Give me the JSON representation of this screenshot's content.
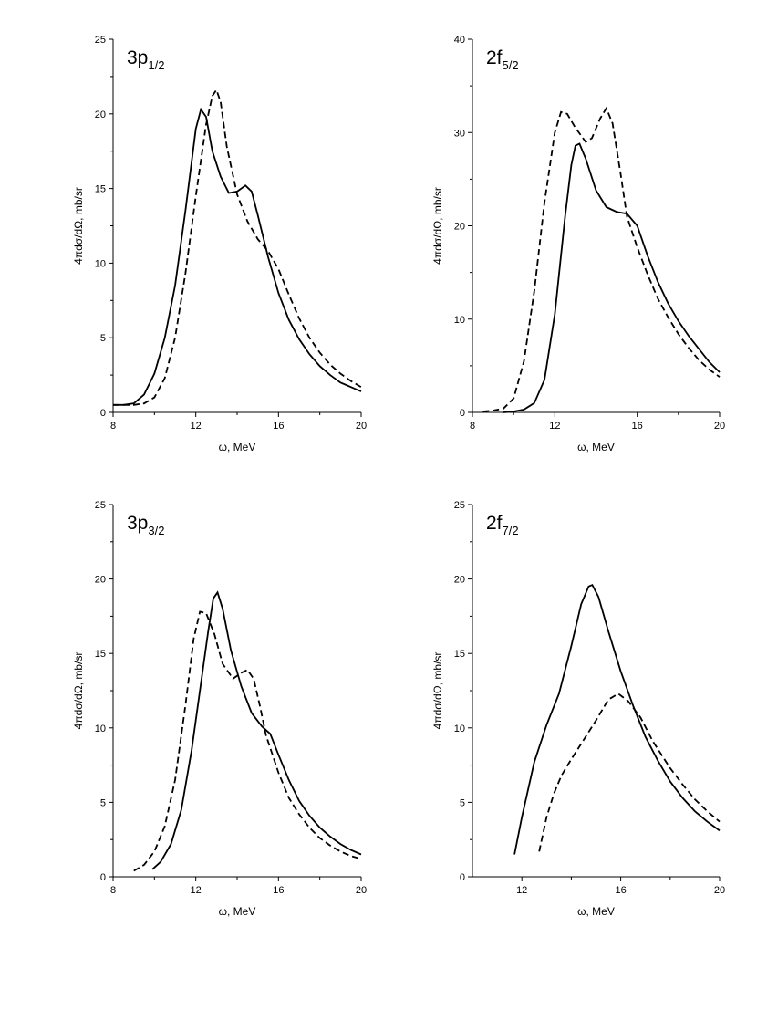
{
  "figure": {
    "colors": {
      "line": "#000000",
      "background": "#ffffff"
    }
  },
  "chart_data": [
    {
      "type": "line",
      "title": {
        "main": "3p",
        "sub": "1/2"
      },
      "xlabel": "ω, MeV",
      "ylabel": "4πdσ/dΩ, mb/sr",
      "xlim": [
        8,
        20
      ],
      "ylim": [
        0,
        25
      ],
      "xticks": [
        8,
        12,
        16,
        20
      ],
      "xtick_labels": [
        "8",
        "12",
        "16",
        "20"
      ],
      "yticks": [
        0,
        5,
        10,
        15,
        20,
        25
      ],
      "ytick_labels": [
        "0",
        "5",
        "10",
        "15",
        "20",
        "25"
      ],
      "series": [
        {
          "name": "solid",
          "style": "solid",
          "x": [
            8.0,
            8.5,
            9.0,
            9.5,
            10.0,
            10.5,
            11.0,
            11.5,
            12.0,
            12.25,
            12.5,
            12.8,
            13.2,
            13.6,
            14.0,
            14.4,
            14.7,
            15.0,
            15.5,
            16.0,
            16.5,
            17.0,
            17.5,
            18.0,
            18.5,
            19.0,
            19.5,
            20.0
          ],
          "y": [
            0.5,
            0.5,
            0.6,
            1.2,
            2.6,
            5.0,
            8.5,
            13.5,
            19.0,
            20.3,
            19.8,
            17.5,
            15.8,
            14.7,
            14.8,
            15.2,
            14.8,
            13.2,
            10.4,
            8.0,
            6.2,
            4.9,
            3.9,
            3.1,
            2.5,
            2.0,
            1.7,
            1.4
          ]
        },
        {
          "name": "dashed",
          "style": "dashed",
          "x": [
            8.0,
            8.5,
            9.0,
            9.5,
            10.0,
            10.5,
            11.0,
            11.5,
            12.0,
            12.5,
            12.8,
            13.0,
            13.2,
            13.5,
            14.0,
            14.5,
            15.0,
            15.5,
            16.0,
            16.5,
            17.0,
            17.5,
            18.0,
            18.5,
            19.0,
            19.5,
            20.0
          ],
          "y": [
            0.5,
            0.5,
            0.5,
            0.6,
            1.0,
            2.3,
            5.0,
            9.3,
            14.5,
            19.3,
            21.2,
            21.6,
            20.8,
            17.8,
            14.6,
            12.8,
            11.6,
            10.8,
            9.6,
            7.9,
            6.3,
            5.0,
            4.0,
            3.2,
            2.6,
            2.1,
            1.7
          ]
        }
      ]
    },
    {
      "type": "line",
      "title": {
        "main": "2f",
        "sub": "5/2"
      },
      "xlabel": "ω, MeV",
      "ylabel": "4πdσ/dΩ, mb/sr",
      "xlim": [
        8,
        20
      ],
      "ylim": [
        0,
        40
      ],
      "xticks": [
        8,
        12,
        16,
        20
      ],
      "xtick_labels": [
        "8",
        "12",
        "16",
        "20"
      ],
      "yticks": [
        0,
        10,
        20,
        30,
        40
      ],
      "ytick_labels": [
        "0",
        "10",
        "20",
        "30",
        "40"
      ],
      "series": [
        {
          "name": "solid",
          "style": "solid",
          "x": [
            9.5,
            10.0,
            10.5,
            11.0,
            11.5,
            12.0,
            12.5,
            12.8,
            13.0,
            13.2,
            13.5,
            14.0,
            14.5,
            15.0,
            15.5,
            16.0,
            16.5,
            17.0,
            17.5,
            18.0,
            18.5,
            19.0,
            19.5,
            20.0
          ],
          "y": [
            0.0,
            0.1,
            0.3,
            1.0,
            3.5,
            10.5,
            21.0,
            26.5,
            28.6,
            28.8,
            27.2,
            23.8,
            22.0,
            21.5,
            21.3,
            20.0,
            16.8,
            14.0,
            11.7,
            9.8,
            8.2,
            6.8,
            5.4,
            4.3
          ]
        },
        {
          "name": "dashed",
          "style": "dashed",
          "x": [
            8.5,
            9.0,
            9.5,
            10.0,
            10.5,
            11.0,
            11.5,
            12.0,
            12.3,
            12.6,
            13.0,
            13.5,
            13.8,
            14.2,
            14.5,
            14.8,
            15.2,
            15.5,
            16.0,
            16.5,
            17.0,
            17.5,
            18.0,
            18.5,
            19.0,
            19.5,
            20.0
          ],
          "y": [
            0.1,
            0.2,
            0.4,
            1.5,
            5.5,
            13.0,
            22.5,
            30.0,
            32.2,
            32.0,
            30.5,
            29.0,
            29.4,
            31.5,
            32.6,
            31.0,
            25.5,
            21.0,
            17.7,
            14.8,
            12.2,
            10.2,
            8.4,
            6.9,
            5.6,
            4.6,
            3.8
          ]
        }
      ]
    },
    {
      "type": "line",
      "title": {
        "main": "3p",
        "sub": "3/2"
      },
      "xlabel": "ω, MeV",
      "ylabel": "4πdσ/dΩ, mb/sr",
      "xlim": [
        8,
        20
      ],
      "ylim": [
        0,
        25
      ],
      "xticks": [
        8,
        12,
        16,
        20
      ],
      "xtick_labels": [
        "8",
        "12",
        "16",
        "20"
      ],
      "yticks": [
        0,
        5,
        10,
        15,
        20,
        25
      ],
      "ytick_labels": [
        "0",
        "5",
        "10",
        "15",
        "20",
        "25"
      ],
      "series": [
        {
          "name": "solid",
          "style": "solid",
          "x": [
            9.9,
            10.3,
            10.8,
            11.3,
            11.8,
            12.2,
            12.6,
            12.85,
            13.05,
            13.3,
            13.7,
            14.2,
            14.7,
            15.2,
            15.6,
            16.0,
            16.5,
            17.0,
            17.5,
            18.0,
            18.5,
            19.0,
            19.5,
            20.0
          ],
          "y": [
            0.5,
            1.0,
            2.2,
            4.5,
            8.5,
            12.5,
            16.5,
            18.7,
            19.1,
            18.0,
            15.2,
            12.8,
            11.0,
            10.1,
            9.6,
            8.2,
            6.5,
            5.1,
            4.1,
            3.3,
            2.7,
            2.2,
            1.8,
            1.5
          ]
        },
        {
          "name": "dashed",
          "style": "dashed",
          "x": [
            9.0,
            9.5,
            10.0,
            10.5,
            11.0,
            11.5,
            11.9,
            12.2,
            12.5,
            12.9,
            13.3,
            13.8,
            14.2,
            14.5,
            14.8,
            15.1,
            15.4,
            16.0,
            16.5,
            17.0,
            17.5,
            18.0,
            18.5,
            19.0,
            19.5,
            20.0
          ],
          "y": [
            0.4,
            0.8,
            1.7,
            3.4,
            6.5,
            11.5,
            16.0,
            17.8,
            17.7,
            16.3,
            14.3,
            13.3,
            13.7,
            13.9,
            13.3,
            11.5,
            9.5,
            7.0,
            5.3,
            4.2,
            3.3,
            2.6,
            2.1,
            1.7,
            1.4,
            1.2
          ]
        }
      ]
    },
    {
      "type": "line",
      "title": {
        "main": "2f",
        "sub": "7/2"
      },
      "xlabel": "ω, MeV",
      "ylabel": "4πdσ/dΩ, mb/sr",
      "xlim": [
        10,
        20
      ],
      "ylim": [
        0,
        25
      ],
      "xticks": [
        12,
        16,
        20
      ],
      "xtick_labels": [
        "12",
        "16",
        "20"
      ],
      "yticks": [
        0,
        5,
        10,
        15,
        20,
        25
      ],
      "ytick_labels": [
        "0",
        "5",
        "10",
        "15",
        "20",
        "25"
      ],
      "series": [
        {
          "name": "solid",
          "style": "solid",
          "x": [
            11.7,
            12.0,
            12.5,
            13.0,
            13.5,
            14.0,
            14.4,
            14.7,
            14.85,
            15.1,
            15.5,
            16.0,
            16.5,
            17.0,
            17.5,
            18.0,
            18.5,
            19.0,
            19.5,
            20.0
          ],
          "y": [
            1.5,
            4.0,
            7.7,
            10.2,
            12.3,
            15.5,
            18.3,
            19.5,
            19.6,
            18.8,
            16.5,
            13.8,
            11.5,
            9.4,
            7.8,
            6.4,
            5.3,
            4.4,
            3.7,
            3.1
          ]
        },
        {
          "name": "dashed",
          "style": "dashed",
          "x": [
            12.7,
            13.0,
            13.3,
            13.6,
            14.0,
            14.5,
            15.0,
            15.5,
            15.9,
            16.3,
            16.8,
            17.3,
            18.0,
            18.5,
            19.0,
            19.5,
            20.0
          ],
          "y": [
            1.7,
            4.0,
            5.6,
            6.8,
            7.9,
            9.2,
            10.5,
            11.9,
            12.3,
            11.8,
            10.7,
            9.1,
            7.3,
            6.2,
            5.2,
            4.4,
            3.7
          ]
        }
      ]
    }
  ]
}
